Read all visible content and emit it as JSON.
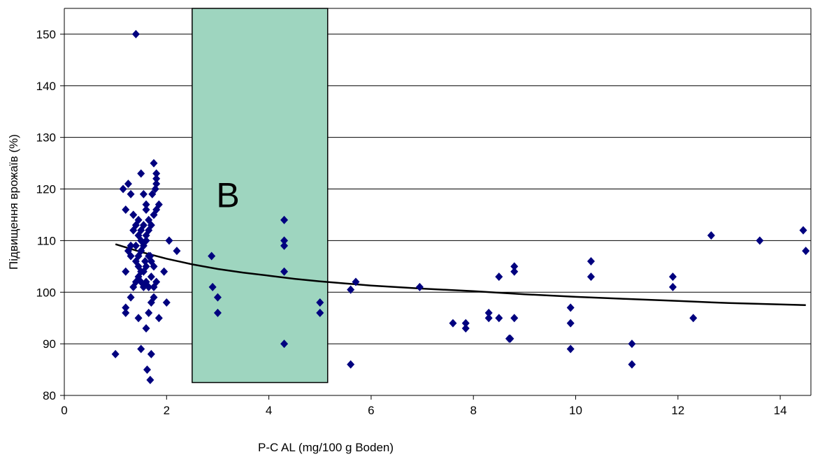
{
  "chart_data": {
    "type": "scatter",
    "title": "",
    "xlabel": "P-C AL (mg/100 g Boden)",
    "ylabel": "Підвищення врожаїв (%)",
    "xlim": [
      0,
      14.6
    ],
    "ylim": [
      80,
      155
    ],
    "x_ticks": [
      "0",
      "2",
      "4",
      "6",
      "8",
      "10",
      "12",
      "14"
    ],
    "y_ticks": [
      "80",
      "90",
      "100",
      "110",
      "120",
      "130",
      "140",
      "150"
    ],
    "grid": "horizontal",
    "legend": "none",
    "marker_color": "#00007f",
    "marker": "diamond",
    "zone": {
      "label": "B",
      "x_range": [
        2.5,
        5.15
      ],
      "y_range": [
        82.5,
        155
      ],
      "fill_color": "#9ed5bf",
      "border_color": "#000000"
    },
    "trendline": {
      "color": "#000000",
      "x": [
        1.0,
        1.5,
        2.0,
        2.5,
        3.0,
        3.5,
        4.0,
        4.5,
        5.0,
        5.5,
        6.0,
        7.0,
        8.0,
        9.0,
        10.0,
        11.0,
        12.0,
        13.0,
        14.5
      ],
      "y": [
        109.3,
        107.8,
        106.5,
        105.4,
        104.5,
        103.8,
        103.2,
        102.6,
        102.1,
        101.7,
        101.3,
        100.7,
        100.2,
        99.6,
        99.1,
        98.7,
        98.3,
        97.9,
        97.5
      ]
    },
    "series": [
      {
        "x": [
          1.0,
          1.4,
          1.15,
          1.25,
          1.3,
          1.2,
          1.35,
          1.45,
          1.5,
          1.55,
          1.6,
          1.65,
          1.75,
          1.8,
          1.8,
          1.8,
          1.78,
          1.72,
          1.6,
          1.55,
          1.5,
          1.45,
          1.4,
          1.35,
          1.3,
          1.25,
          1.2,
          1.6,
          1.55,
          1.5,
          1.45,
          1.65,
          1.7,
          1.75,
          1.6,
          1.55,
          1.5,
          1.45,
          1.4,
          1.35,
          1.7,
          1.8,
          1.75,
          1.65,
          1.6,
          1.55,
          1.5,
          1.45,
          1.4,
          1.85,
          1.8,
          1.75,
          1.7,
          1.65,
          1.6,
          1.5,
          1.4,
          1.3,
          1.2,
          1.2,
          1.3,
          1.45,
          1.6,
          1.65,
          1.7,
          1.75,
          1.85,
          1.7,
          1.62,
          1.5,
          1.68,
          1.95,
          2.0,
          2.05,
          2.2,
          1.5,
          1.68,
          1.58,
          2.88,
          2.9,
          3.0,
          3.0,
          4.3,
          4.3,
          4.3,
          4.3,
          4.3,
          5.0,
          5.0,
          5.6,
          5.7,
          5.6,
          6.95,
          7.6,
          7.85,
          7.85,
          8.3,
          8.3,
          8.5,
          8.5,
          8.7,
          8.72,
          8.8,
          8.8,
          8.8,
          9.9,
          9.9,
          9.9,
          10.3,
          10.3,
          11.1,
          11.1,
          11.9,
          11.9,
          12.3,
          12.65,
          13.6,
          14.45,
          14.5
        ],
        "y": [
          88,
          150,
          120,
          121,
          119,
          116,
          115,
          114,
          123,
          119,
          116,
          114,
          125,
          123,
          122,
          121,
          120,
          119,
          117,
          113,
          112,
          111,
          113,
          112,
          109,
          108,
          104,
          110,
          109,
          108,
          107,
          107,
          106,
          105,
          105,
          104,
          104,
          103,
          102,
          101,
          103,
          102,
          101,
          101,
          102,
          101,
          102,
          105,
          106,
          117,
          116,
          115,
          113,
          112,
          111,
          110,
          109,
          107,
          97,
          96,
          99,
          95,
          93,
          96,
          98,
          99,
          95,
          88,
          85,
          89,
          83,
          104,
          98,
          110,
          108,
          108,
          107,
          106,
          107,
          101,
          99,
          96,
          114,
          110,
          109,
          104,
          90,
          98,
          96,
          100.5,
          102,
          86,
          101,
          94,
          94,
          93,
          96,
          95,
          103,
          95,
          91,
          91,
          105,
          104,
          95,
          97,
          94,
          89,
          106,
          103,
          90,
          86,
          103,
          101,
          95,
          111,
          110,
          112,
          108
        ]
      }
    ]
  }
}
